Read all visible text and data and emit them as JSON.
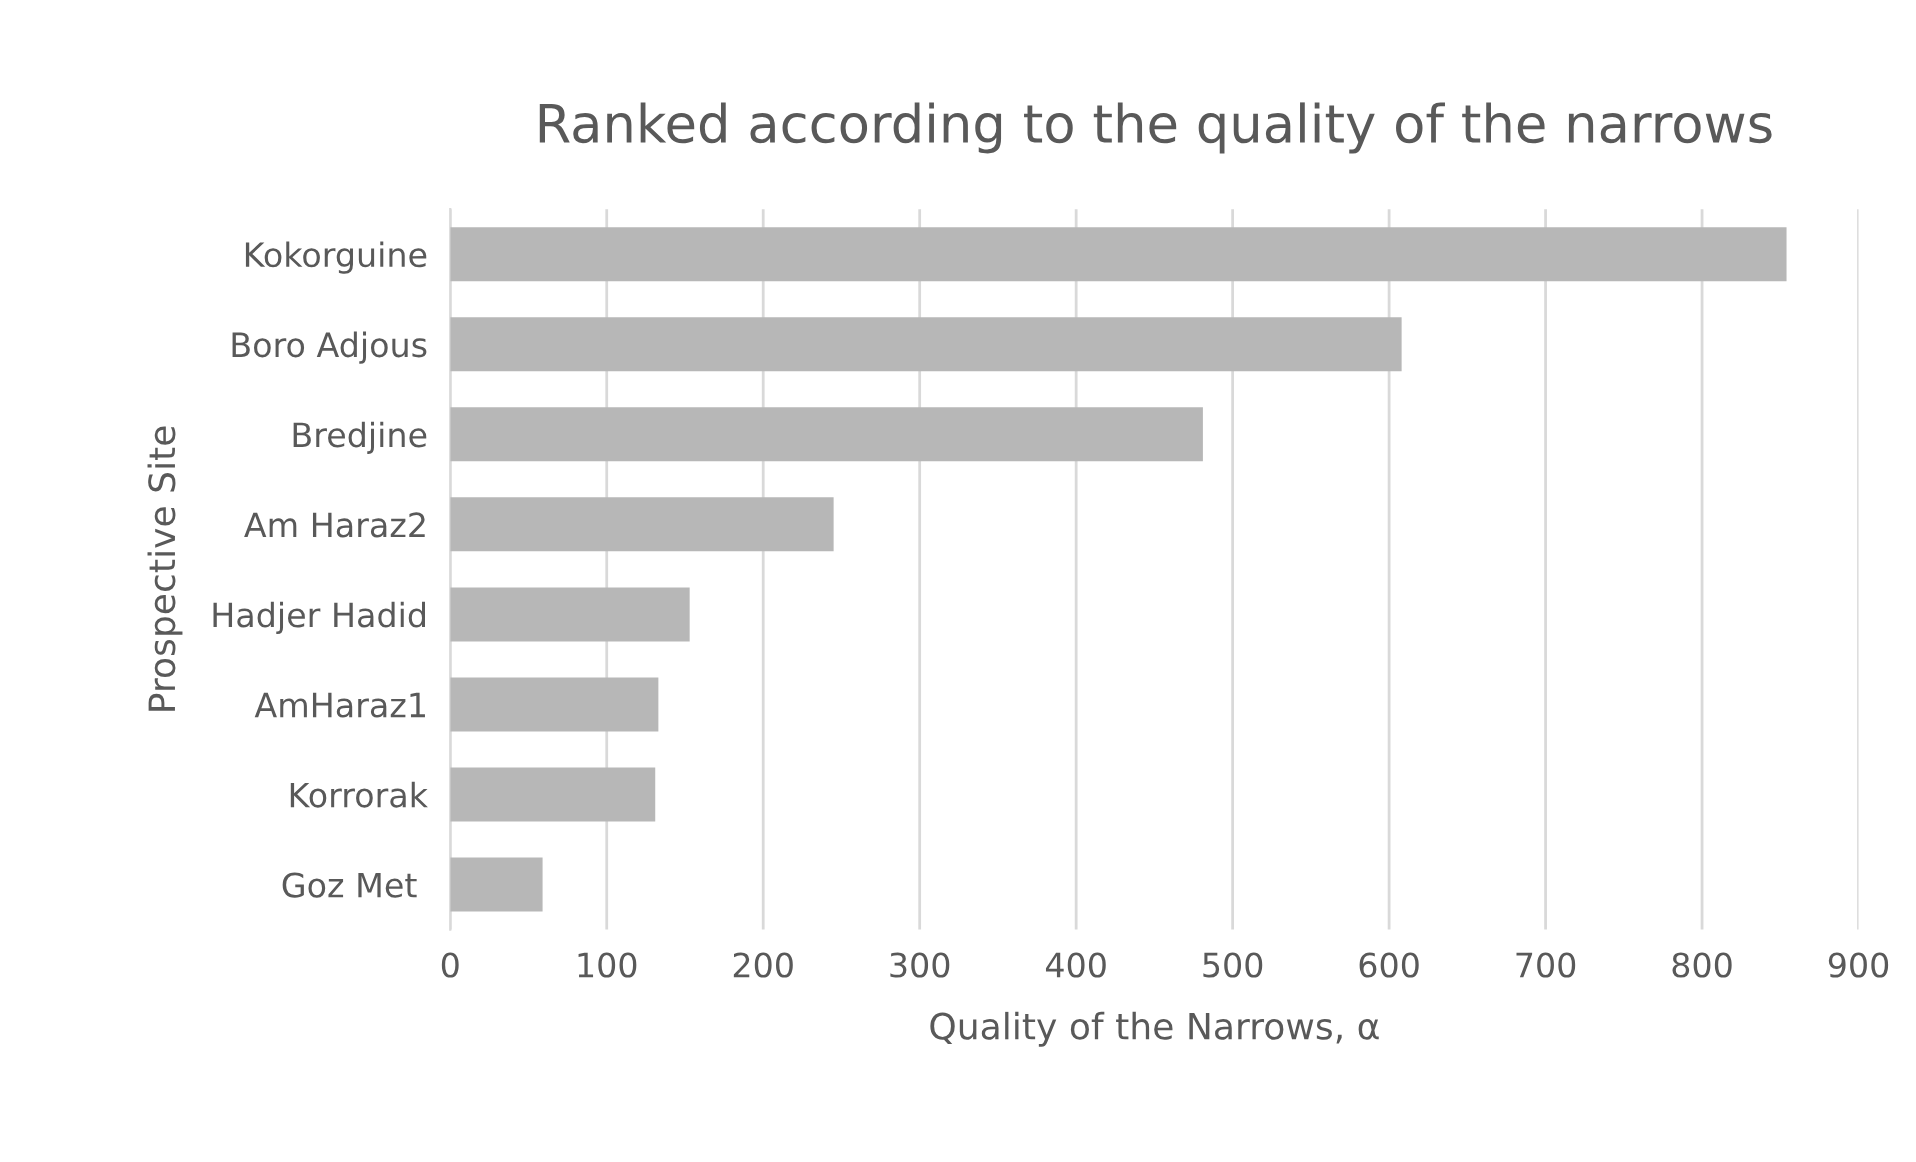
{
  "chart_data": {
    "type": "bar",
    "orientation": "horizontal",
    "title": "Ranked according to the quality of the narrows",
    "xlabel": "Quality of the Narrows, α",
    "ylabel": "Prospective Site",
    "categories": [
      "Kokorguine",
      "Boro Adjous",
      "Bredjine",
      "Am Haraz2",
      "Hadjer Hadid",
      "AmHaraz1",
      "Korrorak",
      "Goz Met "
    ],
    "values": [
      854,
      608,
      481,
      245,
      153,
      133,
      131,
      59
    ],
    "color": "#b7b7b7",
    "xlim": [
      0,
      900
    ],
    "xticks": [
      0,
      100,
      200,
      300,
      400,
      500,
      600,
      700,
      800,
      900
    ],
    "grid": "x"
  }
}
